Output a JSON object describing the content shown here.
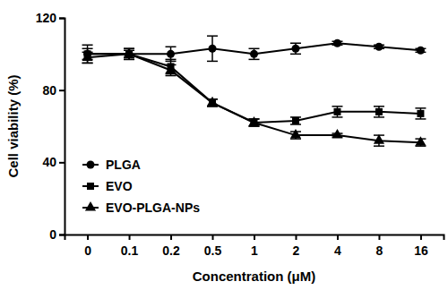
{
  "chart_data": {
    "type": "line",
    "x_label": "Concentration (μM)",
    "y_label": "Cell viability (%)",
    "categories": [
      "0",
      "0.1",
      "0.2",
      "0.5",
      "1",
      "2",
      "4",
      "8",
      "16"
    ],
    "series": [
      {
        "name": "PLGA",
        "color": "#000000",
        "marker": "circle",
        "values": [
          100,
          100,
          100,
          103,
          100,
          103,
          106,
          104,
          102
        ],
        "errors": [
          5,
          3,
          4,
          7,
          3,
          3,
          1,
          1,
          1
        ]
      },
      {
        "name": "EVO",
        "color": "#000000",
        "marker": "square",
        "values": [
          100,
          100,
          93,
          73,
          62,
          63,
          68,
          68,
          67
        ],
        "errors": [
          3,
          3,
          4,
          2,
          2,
          2,
          3,
          3,
          3
        ]
      },
      {
        "name": "EVO-PLGA-NPs",
        "color": "#000000",
        "marker": "triangle",
        "values": [
          98,
          100,
          91,
          73,
          62,
          55,
          55,
          52,
          51
        ],
        "errors": [
          3,
          2,
          3,
          2,
          2,
          2,
          1,
          3,
          2
        ]
      }
    ],
    "ylim": [
      0,
      120
    ],
    "yticks": [
      0,
      40,
      80,
      120
    ],
    "grid": false,
    "legend": "lower left"
  }
}
